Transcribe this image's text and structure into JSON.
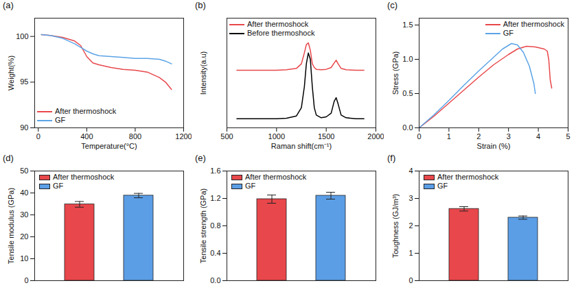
{
  "chart_data": [
    {
      "type": "line",
      "title": "(a)",
      "x_label": "Temperature(°C)",
      "y_label": "Weight(%)",
      "x": [
        25,
        100,
        200,
        300,
        350,
        400,
        450,
        500,
        600,
        700,
        800,
        900,
        1000,
        1050,
        1100
      ],
      "series": [
        {
          "name": "After thermoshock",
          "color": "#e8474b",
          "values": [
            100.2,
            100.1,
            99.9,
            99.5,
            99.0,
            97.8,
            97.1,
            96.9,
            96.6,
            96.4,
            96.3,
            96.1,
            95.5,
            95.0,
            94.2
          ]
        },
        {
          "name": "GF",
          "color": "#5ba3e6",
          "values": [
            100.2,
            100.1,
            99.8,
            99.2,
            98.8,
            98.4,
            98.1,
            97.9,
            97.8,
            97.7,
            97.6,
            97.6,
            97.5,
            97.3,
            97.0
          ]
        }
      ],
      "xlim": [
        -30,
        1200
      ],
      "xticks": [
        0,
        400,
        800,
        1200
      ],
      "ylim": [
        90,
        102
      ],
      "yticks": [
        90,
        95,
        100
      ],
      "legend": "lower left"
    },
    {
      "type": "line",
      "title": "(b)",
      "x_label": "Raman shift(cm⁻¹)",
      "y_label": "Intensity(a.u)",
      "x": [
        600,
        800,
        1000,
        1100,
        1200,
        1250,
        1280,
        1300,
        1320,
        1340,
        1360,
        1380,
        1400,
        1450,
        1500,
        1550,
        1580,
        1600,
        1620,
        1650,
        1700,
        1800,
        1880
      ],
      "series": [
        {
          "name": "After thermoshock",
          "color": "#e8474b",
          "values": [
            6.3,
            6.3,
            6.3,
            6.35,
            6.5,
            7.0,
            8.2,
            9.1,
            9.3,
            8.5,
            7.0,
            6.6,
            6.4,
            6.35,
            6.4,
            6.6,
            7.1,
            7.4,
            7.0,
            6.5,
            6.35,
            6.3,
            6.3
          ]
        },
        {
          "name": "Before thermoshock",
          "color": "#000000",
          "values": [
            1.0,
            1.0,
            1.0,
            1.05,
            1.3,
            2.2,
            4.5,
            7.0,
            8.2,
            7.5,
            4.5,
            2.2,
            1.4,
            1.1,
            1.2,
            1.6,
            2.9,
            3.3,
            2.6,
            1.4,
            1.1,
            1.0,
            1.0
          ]
        }
      ],
      "xlim": [
        500,
        2000
      ],
      "xticks": [
        500,
        1000,
        1500,
        2000
      ],
      "ylim": [
        0,
        12
      ],
      "tick_labels": "x",
      "legend": "upper left"
    },
    {
      "type": "line",
      "title": "(c)",
      "x_label": "Strain (%)",
      "y_label": "Stress (GPa)",
      "series": [
        {
          "name": "After thermoshock",
          "color": "#e8474b",
          "x": [
            0,
            0.5,
            1,
            1.5,
            2,
            2.5,
            3,
            3.3,
            3.6,
            3.9,
            4.2,
            4.3,
            4.35,
            4.4,
            4.45
          ],
          "values": [
            0,
            0.17,
            0.36,
            0.55,
            0.74,
            0.92,
            1.07,
            1.15,
            1.19,
            1.18,
            1.15,
            1.12,
            1.0,
            0.7,
            0.58
          ]
        },
        {
          "name": "GF",
          "color": "#5ba3e6",
          "x": [
            0,
            0.5,
            1,
            1.5,
            2,
            2.5,
            2.8,
            3.1,
            3.3,
            3.5,
            3.7,
            3.85,
            3.9
          ],
          "values": [
            0,
            0.19,
            0.4,
            0.62,
            0.83,
            1.03,
            1.15,
            1.23,
            1.21,
            1.1,
            0.9,
            0.65,
            0.5
          ]
        }
      ],
      "xlim": [
        0,
        5
      ],
      "xticks": [
        0,
        1,
        2,
        3,
        4,
        5
      ],
      "ylim": [
        0,
        1.6
      ],
      "yticks": [
        {
          "value": 0,
          "label": "0.0"
        },
        {
          "value": 0.5,
          "label": "0.5"
        },
        {
          "value": 1,
          "label": "1.0"
        },
        {
          "value": 1.5,
          "label": "1.5"
        }
      ],
      "legend": "upper right"
    },
    {
      "type": "bar",
      "title": "(d)",
      "y_label": "Tensile modulus (GPa)",
      "categories": [
        "After thermoshock",
        "GF"
      ],
      "values": [
        34.8,
        38.8
      ],
      "errors": [
        1.3,
        1.0
      ],
      "colors": [
        "#e8474b",
        "#5b9ee6"
      ],
      "ylim": [
        0,
        50
      ],
      "yticks": [
        0,
        10,
        20,
        30,
        40,
        50
      ],
      "tick_labels": "y",
      "legend": "upper left"
    },
    {
      "type": "bar",
      "title": "(e)",
      "y_label": "Tensile strength (GPa)",
      "categories": [
        "After thermoshock",
        "GF"
      ],
      "values": [
        1.19,
        1.24
      ],
      "errors": [
        0.06,
        0.05
      ],
      "colors": [
        "#e8474b",
        "#5b9ee6"
      ],
      "ylim": [
        0,
        1.6
      ],
      "yticks": [
        {
          "value": 0,
          "label": "0.0"
        },
        {
          "value": 0.4,
          "label": "0.4"
        },
        {
          "value": 0.8,
          "label": "0.8"
        },
        {
          "value": 1.2,
          "label": "1.2"
        },
        {
          "value": 1.6,
          "label": "1.6"
        }
      ],
      "tick_labels": "y",
      "legend": "upper left"
    },
    {
      "type": "bar",
      "title": "(f)",
      "y_label": "Toughness (GJ/m³)",
      "categories": [
        "After thermoshock",
        "GF"
      ],
      "values": [
        2.62,
        2.3
      ],
      "errors": [
        0.08,
        0.06
      ],
      "colors": [
        "#e8474b",
        "#5b9ee6"
      ],
      "ylim": [
        0,
        4
      ],
      "yticks": [
        0,
        1,
        2,
        3,
        4
      ],
      "tick_labels": "y",
      "legend": "upper left"
    }
  ]
}
